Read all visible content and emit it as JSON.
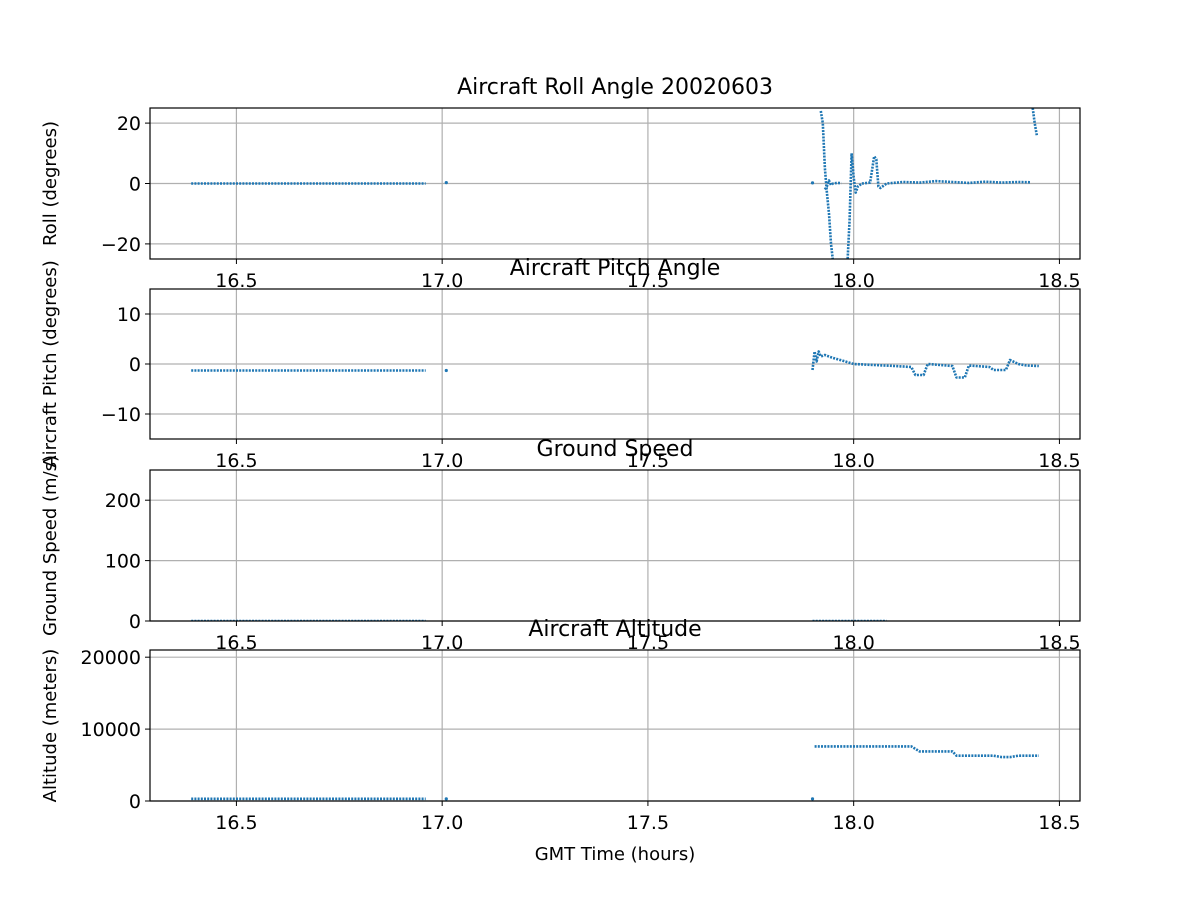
{
  "colors": {
    "series": "#1f77b4",
    "grid": "#b0b0b0",
    "axes": "#000000",
    "background": "#ffffff"
  },
  "chart_data": [
    {
      "type": "scatter",
      "title": "Aircraft Roll Angle 20020603",
      "xlabel": "",
      "ylabel": "Roll (degrees)",
      "xlim": [
        16.29,
        18.55
      ],
      "ylim": [
        -25,
        25
      ],
      "xticks": [
        16.5,
        17.0,
        17.5,
        18.0,
        18.5
      ],
      "xtick_labels": [
        "16.5",
        "17.0",
        "17.5",
        "18.0",
        "18.5"
      ],
      "yticks": [
        -20,
        0,
        20
      ],
      "ytick_labels": [
        "−20",
        "0",
        "20"
      ],
      "grid": true,
      "series": [
        {
          "segments": [
            [
              [
                16.39,
                0
              ],
              [
                16.96,
                0
              ]
            ],
            [
              [
                17.01,
                0.3
              ],
              [
                17.01,
                0.3
              ]
            ],
            [
              [
                17.9,
                0.2
              ],
              [
                17.9,
                0.2
              ]
            ],
            [
              [
                17.92,
                24
              ],
              [
                17.925,
                20
              ],
              [
                17.93,
                5
              ],
              [
                17.935,
                -3
              ],
              [
                17.94,
                -10
              ],
              [
                17.945,
                -20
              ],
              [
                17.95,
                -26
              ]
            ],
            [
              [
                17.93,
                -2
              ],
              [
                17.935,
                -1
              ],
              [
                17.94,
                1
              ],
              [
                17.945,
                -0.5
              ],
              [
                17.95,
                0
              ],
              [
                17.96,
                0.2
              ],
              [
                17.97,
                0.1
              ]
            ],
            [
              [
                17.985,
                -26
              ],
              [
                17.99,
                -12
              ],
              [
                17.995,
                10
              ],
              [
                18.0,
                2
              ],
              [
                18.005,
                -3
              ],
              [
                18.01,
                -1
              ],
              [
                18.02,
                0
              ]
            ],
            [
              [
                18.02,
                0
              ],
              [
                18.04,
                0.3
              ],
              [
                18.05,
                9
              ],
              [
                18.055,
                8
              ],
              [
                18.06,
                -1
              ],
              [
                18.065,
                -1.5
              ],
              [
                18.08,
                0
              ],
              [
                18.12,
                0.5
              ],
              [
                18.16,
                0.3
              ],
              [
                18.2,
                0.8
              ],
              [
                18.24,
                0.5
              ],
              [
                18.28,
                0.2
              ],
              [
                18.32,
                0.6
              ],
              [
                18.36,
                0.3
              ],
              [
                18.4,
                0.5
              ],
              [
                18.43,
                0.4
              ]
            ],
            [
              [
                18.435,
                25
              ],
              [
                18.44,
                20
              ],
              [
                18.445,
                16
              ]
            ]
          ],
          "values_note": ""
        }
      ]
    },
    {
      "type": "scatter",
      "title": "Aircraft Pitch Angle",
      "xlabel": "",
      "ylabel": "Aircraft Pitch (degrees)",
      "xlim": [
        16.29,
        18.55
      ],
      "ylim": [
        -15,
        15
      ],
      "xticks": [
        16.5,
        17.0,
        17.5,
        18.0,
        18.5
      ],
      "xtick_labels": [
        "16.5",
        "17.0",
        "17.5",
        "18.0",
        "18.5"
      ],
      "yticks": [
        -10,
        0,
        10
      ],
      "ytick_labels": [
        "−10",
        "0",
        "10"
      ],
      "grid": true,
      "series": [
        {
          "segments": [
            [
              [
                16.39,
                -1.3
              ],
              [
                16.96,
                -1.3
              ]
            ],
            [
              [
                17.01,
                -1.3
              ],
              [
                17.01,
                -1.3
              ]
            ],
            [
              [
                17.9,
                -1.2
              ],
              [
                17.905,
                2.5
              ],
              [
                17.91,
                0.5
              ],
              [
                17.915,
                2.5
              ],
              [
                17.92,
                1.5
              ],
              [
                17.93,
                1.8
              ],
              [
                17.95,
                1.2
              ],
              [
                17.98,
                0.5
              ],
              [
                18.0,
                0
              ],
              [
                18.05,
                -0.2
              ],
              [
                18.1,
                -0.4
              ],
              [
                18.14,
                -0.6
              ],
              [
                18.15,
                -2.2
              ],
              [
                18.17,
                -2.2
              ],
              [
                18.18,
                0
              ],
              [
                18.24,
                -0.4
              ],
              [
                18.25,
                -2.7
              ],
              [
                18.27,
                -2.7
              ],
              [
                18.28,
                -0.3
              ],
              [
                18.33,
                -0.6
              ],
              [
                18.34,
                -1.2
              ],
              [
                18.37,
                -1.2
              ],
              [
                18.38,
                0.8
              ],
              [
                18.4,
                0
              ],
              [
                18.42,
                -0.3
              ],
              [
                18.45,
                -0.4
              ]
            ]
          ]
        }
      ]
    },
    {
      "type": "scatter",
      "title": "Ground Speed",
      "xlabel": "",
      "ylabel": "Ground Speed (m/s)",
      "xlim": [
        16.29,
        18.55
      ],
      "ylim": [
        0,
        250
      ],
      "xticks": [
        16.5,
        17.0,
        17.5,
        18.0,
        18.5
      ],
      "xtick_labels": [
        "16.5",
        "17.0",
        "17.5",
        "18.0",
        "18.5"
      ],
      "yticks": [
        0,
        100,
        200
      ],
      "ytick_labels": [
        "0",
        "100",
        "200"
      ],
      "grid": true,
      "series": [
        {
          "segments": [
            [
              [
                16.39,
                0
              ],
              [
                16.96,
                0
              ]
            ],
            [
              [
                17.9,
                0
              ],
              [
                18.08,
                0
              ]
            ]
          ]
        }
      ]
    },
    {
      "type": "scatter",
      "title": "Aircraft Altitude",
      "xlabel": "GMT Time (hours)",
      "ylabel": "Altitude (meters)",
      "xlim": [
        16.29,
        18.55
      ],
      "ylim": [
        0,
        21000
      ],
      "xticks": [
        16.5,
        17.0,
        17.5,
        18.0,
        18.5
      ],
      "xtick_labels": [
        "16.5",
        "17.0",
        "17.5",
        "18.0",
        "18.5"
      ],
      "yticks": [
        0,
        10000,
        20000
      ],
      "ytick_labels": [
        "0",
        "10000",
        "20000"
      ],
      "grid": true,
      "series": [
        {
          "segments": [
            [
              [
                16.39,
                300
              ],
              [
                16.96,
                300
              ]
            ],
            [
              [
                17.01,
                300
              ],
              [
                17.01,
                300
              ]
            ],
            [
              [
                17.9,
                300
              ],
              [
                17.9,
                300
              ]
            ],
            [
              [
                17.905,
                7600
              ],
              [
                18.14,
                7600
              ],
              [
                18.16,
                6900
              ],
              [
                18.24,
                6900
              ],
              [
                18.25,
                6300
              ],
              [
                18.34,
                6300
              ],
              [
                18.36,
                6100
              ],
              [
                18.38,
                6100
              ],
              [
                18.4,
                6300
              ],
              [
                18.45,
                6300
              ]
            ]
          ]
        }
      ]
    }
  ]
}
